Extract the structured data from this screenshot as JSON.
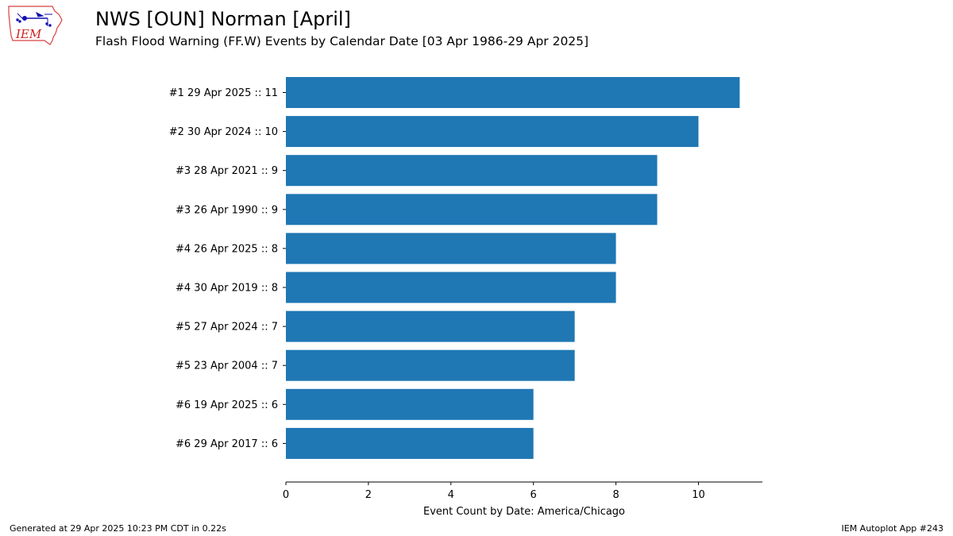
{
  "logo": {
    "text": "IEM"
  },
  "header": {
    "title": "NWS [OUN] Norman [April]",
    "subtitle": "Flash Flood Warning (FF.W) Events by Calendar Date [03 Apr 1986-29 Apr 2025]"
  },
  "footer": {
    "left": "Generated at 29 Apr 2025 10:23 PM CDT in 0.22s",
    "right": "IEM Autoplot App #243"
  },
  "colors": {
    "bar": "#1f77b4",
    "axis": "#000000"
  },
  "chart_data": {
    "type": "bar",
    "orientation": "horizontal",
    "categories": [
      "#1  29 Apr 2025 :: 11",
      "#2  30 Apr 2024 :: 10",
      "#3  28 Apr 2021 :: 9",
      "#3  26 Apr 1990 :: 9",
      "#4  26 Apr 2025 :: 8",
      "#4  30 Apr 2019 :: 8",
      "#5  27 Apr 2024 :: 7",
      "#5  23 Apr 2004 :: 7",
      "#6  19 Apr 2025 :: 6",
      "#6  29 Apr 2017 :: 6"
    ],
    "values": [
      11,
      10,
      9,
      9,
      8,
      8,
      7,
      7,
      6,
      6
    ],
    "xlabel": "Event Count by Date: America/Chicago",
    "ylabel": "",
    "xlim": [
      0,
      11.55
    ],
    "xticks": [
      0,
      2,
      4,
      6,
      8,
      10
    ],
    "grid": false
  }
}
